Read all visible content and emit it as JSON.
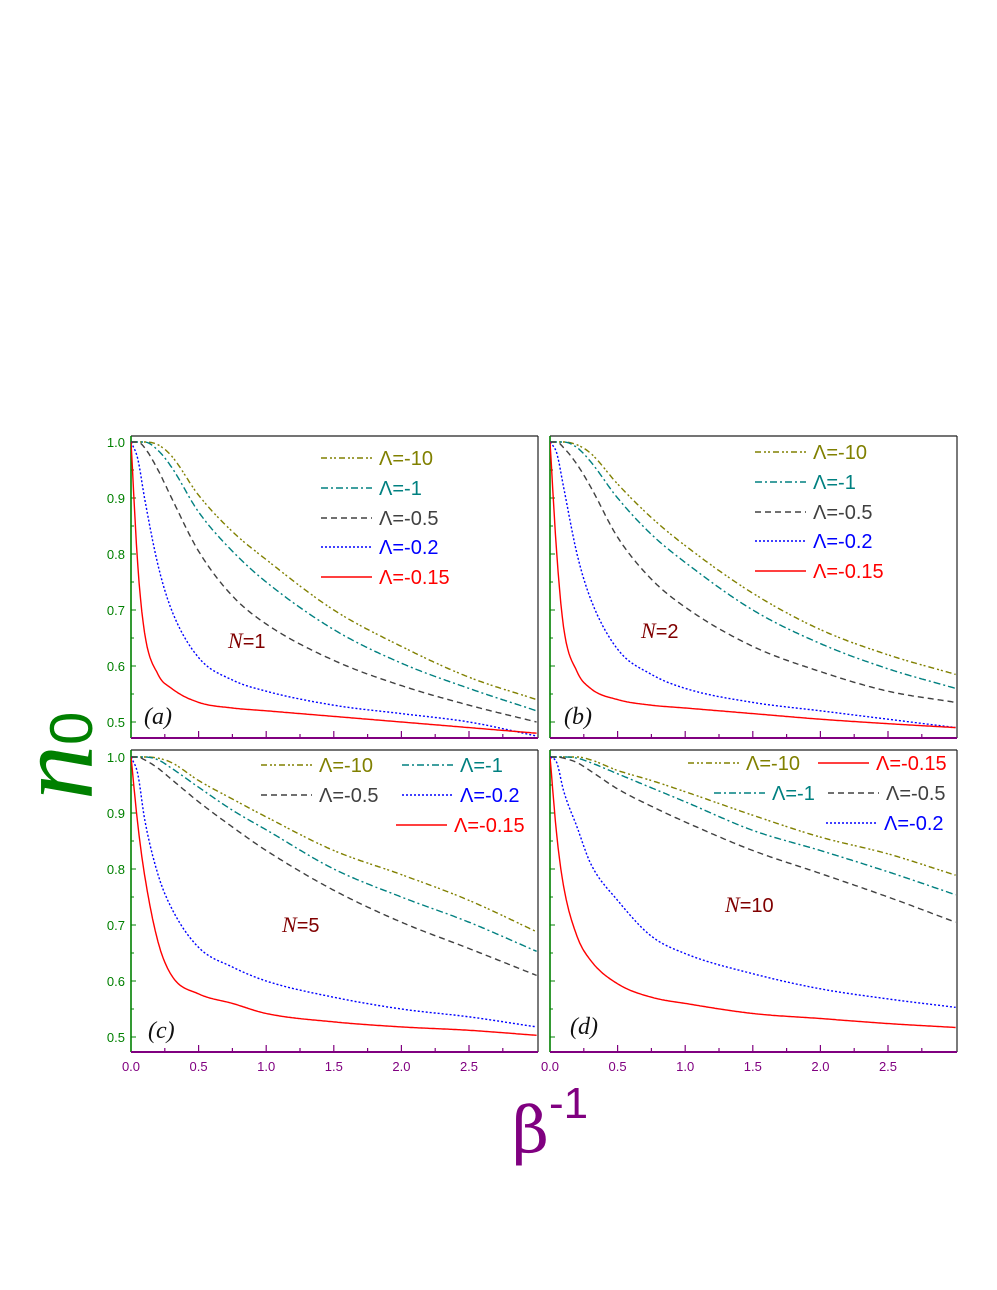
{
  "axes": {
    "ylabel": "n",
    "ylabel_sub": "0",
    "ylabel_color": "#008000",
    "xlabel": "β",
    "xlabel_sup": "-1",
    "xlabel_color": "#800080",
    "xlim": [
      0,
      3.0
    ],
    "ylim": [
      0.47,
      1.01
    ],
    "xticks": [
      "0.0",
      "0.5",
      "1.0",
      "1.5",
      "2.0",
      "2.5"
    ],
    "yticks": [
      "0.5",
      "0.6",
      "0.7",
      "0.8",
      "0.9",
      "1.0"
    ],
    "grid": false
  },
  "chart_data": [
    {
      "type": "line",
      "panel_label": "(a)",
      "annotation_var": "N",
      "annotation_val": "=1",
      "legend_placement": "top-right",
      "x": [
        0,
        0.05,
        0.1,
        0.2,
        0.3,
        0.5,
        0.75,
        1,
        1.5,
        2,
        2.5,
        3
      ],
      "series": [
        {
          "name": "Λ=-10",
          "color": "#808000",
          "style": "dash-dot-dot",
          "values": [
            1,
            1,
            1,
            0.995,
            0.975,
            0.905,
            0.84,
            0.79,
            0.7,
            0.635,
            0.58,
            0.54
          ]
        },
        {
          "name": "Λ=-1",
          "color": "#008080",
          "style": "dash-dot",
          "values": [
            1,
            1,
            1,
            0.985,
            0.955,
            0.875,
            0.805,
            0.75,
            0.665,
            0.605,
            0.56,
            0.52
          ]
        },
        {
          "name": "Λ=-0.5",
          "color": "#404040",
          "style": "dashed",
          "values": [
            1,
            1,
            0.99,
            0.95,
            0.9,
            0.805,
            0.725,
            0.675,
            0.61,
            0.565,
            0.53,
            0.5
          ]
        },
        {
          "name": "Λ=-0.2",
          "color": "#0000ff",
          "style": "dotted",
          "values": [
            1,
            0.97,
            0.9,
            0.78,
            0.7,
            0.615,
            0.575,
            0.555,
            0.53,
            0.515,
            0.5,
            0.475
          ]
        },
        {
          "name": "Λ=-0.15",
          "color": "#ff0000",
          "style": "solid",
          "values": [
            1,
            0.78,
            0.66,
            0.585,
            0.56,
            0.535,
            0.525,
            0.52,
            0.51,
            0.5,
            0.49,
            0.48
          ]
        }
      ]
    },
    {
      "type": "line",
      "panel_label": "(b)",
      "annotation_var": "N",
      "annotation_val": "=2",
      "legend_placement": "top-right",
      "x": [
        0,
        0.05,
        0.1,
        0.2,
        0.3,
        0.5,
        0.75,
        1,
        1.5,
        2,
        2.5,
        3
      ],
      "series": [
        {
          "name": "Λ=-10",
          "color": "#808000",
          "style": "dash-dot-dot",
          "values": [
            1,
            1,
            1,
            0.995,
            0.98,
            0.925,
            0.865,
            0.815,
            0.73,
            0.665,
            0.62,
            0.585
          ]
        },
        {
          "name": "Λ=-1",
          "color": "#008080",
          "style": "dash-dot",
          "values": [
            1,
            1,
            1,
            0.99,
            0.965,
            0.9,
            0.835,
            0.785,
            0.7,
            0.64,
            0.595,
            0.56
          ]
        },
        {
          "name": "Λ=-0.5",
          "color": "#404040",
          "style": "dashed",
          "values": [
            1,
            1,
            0.99,
            0.96,
            0.92,
            0.83,
            0.755,
            0.705,
            0.635,
            0.59,
            0.555,
            0.535
          ]
        },
        {
          "name": "Λ=-0.2",
          "color": "#0000ff",
          "style": "dotted",
          "values": [
            1,
            0.98,
            0.92,
            0.8,
            0.72,
            0.63,
            0.585,
            0.56,
            0.535,
            0.52,
            0.505,
            0.49
          ]
        },
        {
          "name": "Λ=-0.15",
          "color": "#ff0000",
          "style": "solid",
          "values": [
            1,
            0.8,
            0.67,
            0.59,
            0.56,
            0.54,
            0.53,
            0.525,
            0.515,
            0.505,
            0.497,
            0.49
          ]
        }
      ]
    },
    {
      "type": "line",
      "panel_label": "(c)",
      "annotation_var": "N",
      "annotation_val": "=5",
      "legend_placement": "top-right",
      "x": [
        0,
        0.05,
        0.1,
        0.2,
        0.3,
        0.5,
        0.75,
        1,
        1.5,
        2,
        2.5,
        3
      ],
      "series": [
        {
          "name": "Λ=-10",
          "color": "#808000",
          "style": "dash-dot-dot",
          "values": [
            1,
            1,
            1,
            0.998,
            0.99,
            0.958,
            0.925,
            0.893,
            0.833,
            0.79,
            0.744,
            0.688
          ]
        },
        {
          "name": "Λ=-1",
          "color": "#008080",
          "style": "dash-dot",
          "values": [
            1,
            1,
            1,
            0.995,
            0.98,
            0.946,
            0.905,
            0.87,
            0.8,
            0.75,
            0.705,
            0.653
          ]
        },
        {
          "name": "Λ=-0.5",
          "color": "#404040",
          "style": "dashed",
          "values": [
            1,
            1,
            0.995,
            0.98,
            0.96,
            0.92,
            0.875,
            0.833,
            0.762,
            0.705,
            0.658,
            0.61
          ]
        },
        {
          "name": "Λ=-0.2",
          "color": "#0000ff",
          "style": "dotted",
          "values": [
            1,
            0.97,
            0.89,
            0.79,
            0.73,
            0.66,
            0.625,
            0.6,
            0.571,
            0.55,
            0.536,
            0.518
          ]
        },
        {
          "name": "Λ=-0.15",
          "color": "#ff0000",
          "style": "solid",
          "values": [
            1,
            0.88,
            0.79,
            0.67,
            0.61,
            0.577,
            0.56,
            0.542,
            0.527,
            0.518,
            0.512,
            0.503
          ]
        }
      ]
    },
    {
      "type": "line",
      "panel_label": "(d)",
      "annotation_var": "N",
      "annotation_val": "=10",
      "legend_placement": "top-right",
      "x": [
        0,
        0.05,
        0.1,
        0.2,
        0.3,
        0.5,
        0.75,
        1,
        1.5,
        2,
        2.5,
        3
      ],
      "series": [
        {
          "name": "Λ=-10",
          "color": "#808000",
          "style": "dash-dot-dot",
          "values": [
            1,
            1,
            1,
            1,
            0.995,
            0.976,
            0.958,
            0.938,
            0.896,
            0.857,
            0.827,
            0.789
          ]
        },
        {
          "name": "Λ=-1",
          "color": "#008080",
          "style": "dash-dot",
          "values": [
            1,
            1,
            1,
            0.998,
            0.99,
            0.97,
            0.945,
            0.92,
            0.869,
            0.833,
            0.795,
            0.754
          ]
        },
        {
          "name": "Λ=-0.5",
          "color": "#404040",
          "style": "dashed",
          "values": [
            1,
            1,
            0.998,
            0.99,
            0.975,
            0.943,
            0.912,
            0.884,
            0.833,
            0.792,
            0.75,
            0.705
          ]
        },
        {
          "name": "Λ=-0.2",
          "color": "#0000ff",
          "style": "dotted",
          "values": [
            1,
            0.99,
            0.94,
            0.875,
            0.81,
            0.744,
            0.68,
            0.649,
            0.613,
            0.586,
            0.568,
            0.553
          ]
        },
        {
          "name": "Λ=-0.15",
          "color": "#ff0000",
          "style": "solid",
          "values": [
            1,
            0.86,
            0.77,
            0.68,
            0.637,
            0.595,
            0.571,
            0.56,
            0.542,
            0.533,
            0.524,
            0.517
          ]
        }
      ]
    }
  ]
}
